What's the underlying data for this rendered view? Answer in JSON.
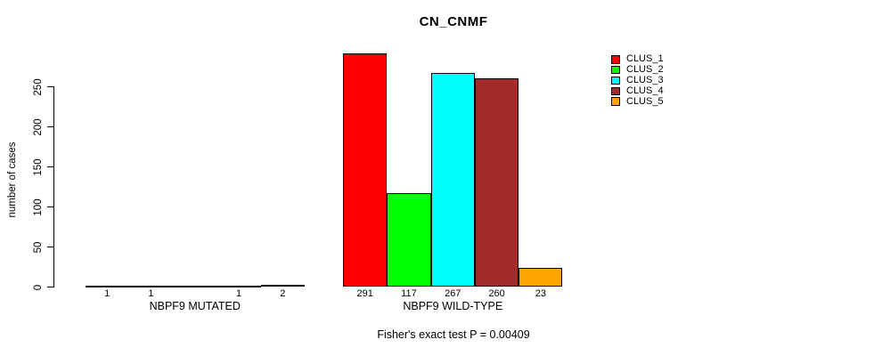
{
  "chart_data": {
    "type": "bar",
    "title": "CN_CNMF",
    "ylabel": "number of cases",
    "xlabel": "",
    "yticks": [
      0,
      50,
      100,
      150,
      200,
      250
    ],
    "ylim": [
      0,
      291
    ],
    "grid": false,
    "legend_position": "right",
    "series_colors": [
      "#FF0000",
      "#00FF00",
      "#00FFFF",
      "#A52A2A",
      "#FFA500"
    ],
    "groups": [
      {
        "label": "NBPF9 MUTATED",
        "values": [
          1,
          1,
          0,
          1,
          2
        ],
        "bar_labels": [
          "1",
          "1",
          "",
          "1",
          "2"
        ]
      },
      {
        "label": "NBPF9 WILD-TYPE",
        "values": [
          291,
          117,
          267,
          260,
          23
        ],
        "bar_labels": [
          "291",
          "117",
          "267",
          "260",
          "23"
        ]
      }
    ],
    "legend": [
      {
        "label": "CLUS_1",
        "color": "#FF0000"
      },
      {
        "label": "CLUS_2",
        "color": "#00FF00"
      },
      {
        "label": "CLUS_3",
        "color": "#00FFFF"
      },
      {
        "label": "CLUS_4",
        "color": "#A52A2A"
      },
      {
        "label": "CLUS_5",
        "color": "#FFA500"
      }
    ],
    "footnote": "Fisher's exact test P = 0.00409"
  }
}
